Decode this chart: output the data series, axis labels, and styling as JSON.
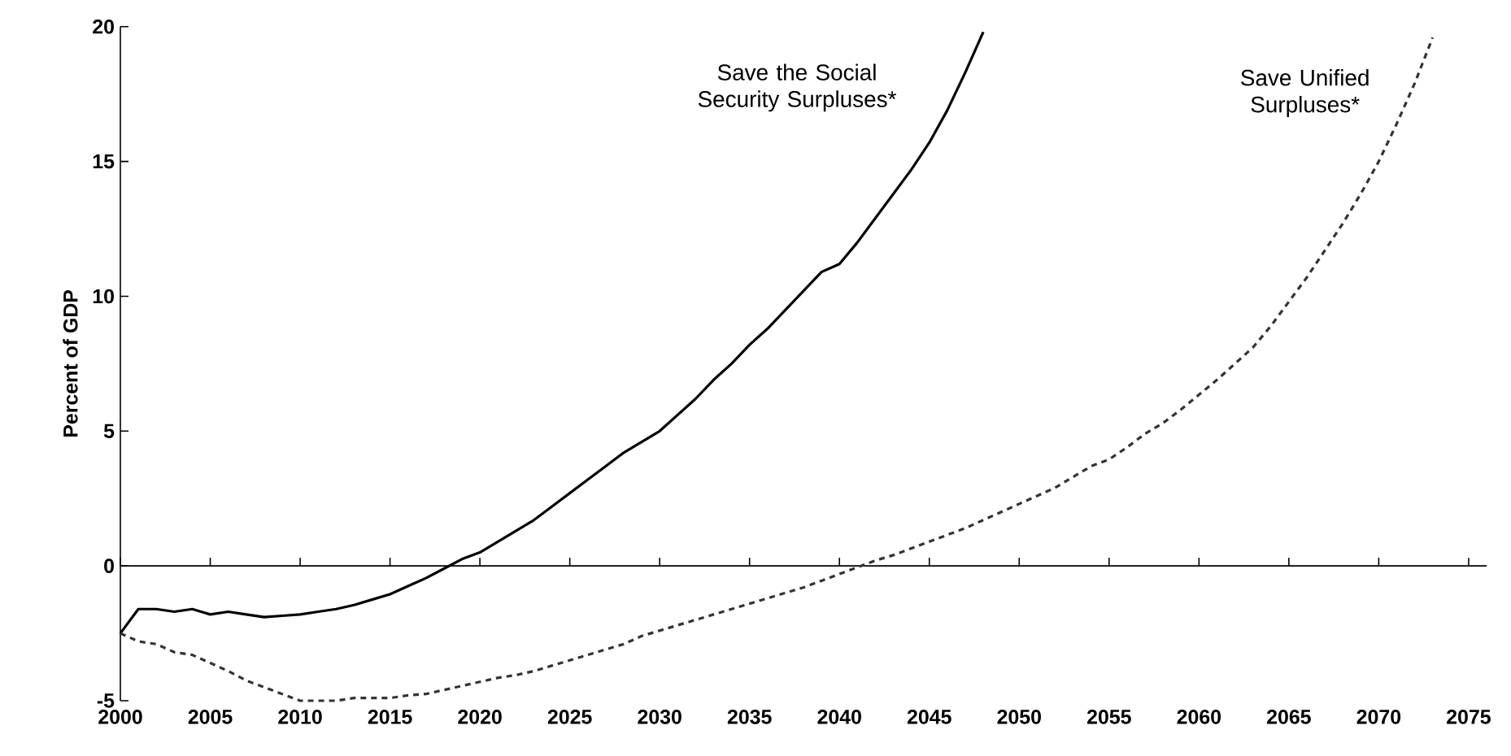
{
  "chart_data": {
    "type": "line",
    "ylabel": "Percent of GDP",
    "xlim": [
      2000,
      2076
    ],
    "ylim": [
      -5,
      20
    ],
    "xticks": [
      2000,
      2005,
      2010,
      2015,
      2020,
      2025,
      2030,
      2035,
      2040,
      2045,
      2050,
      2055,
      2060,
      2065,
      2070,
      2075
    ],
    "yticks": [
      -5,
      0,
      5,
      10,
      15,
      20
    ],
    "series": [
      {
        "name": "Save the Social Security Surpluses*",
        "color": "#000000",
        "line_style": "solid",
        "x": [
          2000,
          2001,
          2002,
          2003,
          2004,
          2005,
          2006,
          2007,
          2008,
          2009,
          2010,
          2011,
          2012,
          2013,
          2014,
          2015,
          2016,
          2017,
          2018,
          2019,
          2020,
          2021,
          2022,
          2023,
          2024,
          2025,
          2026,
          2027,
          2028,
          2029,
          2030,
          2031,
          2032,
          2033,
          2034,
          2035,
          2036,
          2037,
          2038,
          2039,
          2040,
          2041,
          2042,
          2043,
          2044,
          2045,
          2046,
          2047,
          2048
        ],
        "values": [
          -2.5,
          -1.6,
          -1.6,
          -1.7,
          -1.6,
          -1.8,
          -1.7,
          -1.8,
          -1.9,
          -1.85,
          -1.8,
          -1.7,
          -1.6,
          -1.45,
          -1.25,
          -1.05,
          -0.75,
          -0.45,
          -0.1,
          0.25,
          0.5,
          0.9,
          1.3,
          1.7,
          2.2,
          2.7,
          3.2,
          3.7,
          4.2,
          4.6,
          5.0,
          5.6,
          6.2,
          6.9,
          7.5,
          8.2,
          8.8,
          9.5,
          10.2,
          10.9,
          11.2,
          12.0,
          12.9,
          13.8,
          14.7,
          15.7,
          16.9,
          18.3,
          19.8
        ]
      },
      {
        "name": "Save Unified Surpluses*",
        "color": "#333333",
        "line_style": "dashed",
        "x": [
          2000,
          2001,
          2002,
          2003,
          2004,
          2005,
          2006,
          2007,
          2008,
          2009,
          2010,
          2011,
          2012,
          2013,
          2014,
          2015,
          2016,
          2017,
          2018,
          2019,
          2020,
          2021,
          2022,
          2023,
          2024,
          2025,
          2026,
          2027,
          2028,
          2029,
          2030,
          2031,
          2032,
          2033,
          2034,
          2035,
          2036,
          2037,
          2038,
          2039,
          2040,
          2041,
          2042,
          2043,
          2044,
          2045,
          2046,
          2047,
          2048,
          2049,
          2050,
          2051,
          2052,
          2053,
          2054,
          2055,
          2056,
          2057,
          2058,
          2059,
          2060,
          2061,
          2062,
          2063,
          2064,
          2065,
          2066,
          2067,
          2068,
          2069,
          2070,
          2071,
          2072,
          2073
        ],
        "values": [
          -2.5,
          -2.8,
          -2.9,
          -3.2,
          -3.3,
          -3.6,
          -3.9,
          -4.25,
          -4.5,
          -4.75,
          -5.0,
          -5.0,
          -5.0,
          -4.9,
          -4.9,
          -4.9,
          -4.8,
          -4.75,
          -4.6,
          -4.45,
          -4.3,
          -4.15,
          -4.05,
          -3.9,
          -3.7,
          -3.5,
          -3.3,
          -3.1,
          -2.9,
          -2.6,
          -2.4,
          -2.2,
          -2.0,
          -1.8,
          -1.6,
          -1.4,
          -1.2,
          -1.0,
          -0.8,
          -0.55,
          -0.3,
          -0.05,
          0.2,
          0.4,
          0.65,
          0.9,
          1.15,
          1.4,
          1.7,
          2.0,
          2.3,
          2.6,
          2.9,
          3.3,
          3.7,
          3.95,
          4.4,
          4.9,
          5.3,
          5.8,
          6.35,
          6.9,
          7.5,
          8.1,
          8.9,
          9.8,
          10.7,
          11.7,
          12.7,
          13.8,
          15.0,
          16.4,
          17.9,
          19.6
        ]
      }
    ]
  }
}
